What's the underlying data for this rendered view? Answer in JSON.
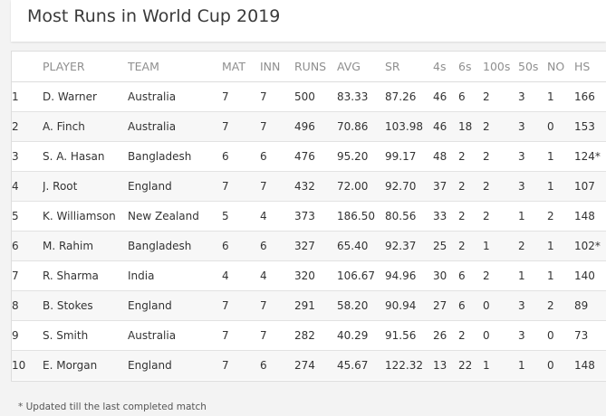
{
  "title": "Most Runs in World Cup 2019",
  "columns": [
    "",
    "PLAYER",
    "TEAM",
    "MAT",
    "INN",
    "RUNS",
    "AVG",
    "SR",
    "4s",
    "6s",
    "100s",
    "50s",
    "NO",
    "HS"
  ],
  "rows": [
    [
      "1",
      "D. Warner",
      "Australia",
      "7",
      "7",
      "500",
      "83.33",
      "87.26",
      "46",
      "6",
      "2",
      "3",
      "1",
      "166"
    ],
    [
      "2",
      "A. Finch",
      "Australia",
      "7",
      "7",
      "496",
      "70.86",
      "103.98",
      "46",
      "18",
      "2",
      "3",
      "0",
      "153"
    ],
    [
      "3",
      "S. A. Hasan",
      "Bangladesh",
      "6",
      "6",
      "476",
      "95.20",
      "99.17",
      "48",
      "2",
      "2",
      "3",
      "1",
      "124*"
    ],
    [
      "4",
      "J. Root",
      "England",
      "7",
      "7",
      "432",
      "72.00",
      "92.70",
      "37",
      "2",
      "2",
      "3",
      "1",
      "107"
    ],
    [
      "5",
      "K. Williamson",
      "New Zealand",
      "5",
      "4",
      "373",
      "186.50",
      "80.56",
      "33",
      "2",
      "2",
      "1",
      "2",
      "148"
    ],
    [
      "6",
      "M. Rahim",
      "Bangladesh",
      "6",
      "6",
      "327",
      "65.40",
      "92.37",
      "25",
      "2",
      "1",
      "2",
      "1",
      "102*"
    ],
    [
      "7",
      "R. Sharma",
      "India",
      "4",
      "4",
      "320",
      "106.67",
      "94.96",
      "30",
      "6",
      "2",
      "1",
      "1",
      "140"
    ],
    [
      "8",
      "B. Stokes",
      "England",
      "7",
      "7",
      "291",
      "58.20",
      "90.94",
      "27",
      "6",
      "0",
      "3",
      "2",
      "89"
    ],
    [
      "9",
      "S. Smith",
      "Australia",
      "7",
      "7",
      "282",
      "40.29",
      "91.56",
      "26",
      "2",
      "0",
      "3",
      "0",
      "73"
    ],
    [
      "10",
      "E. Morgan",
      "England",
      "7",
      "6",
      "274",
      "45.67",
      "122.32",
      "13",
      "22",
      "1",
      "1",
      "0",
      "148"
    ]
  ],
  "footer_note": "* Updated till the last completed match"
}
